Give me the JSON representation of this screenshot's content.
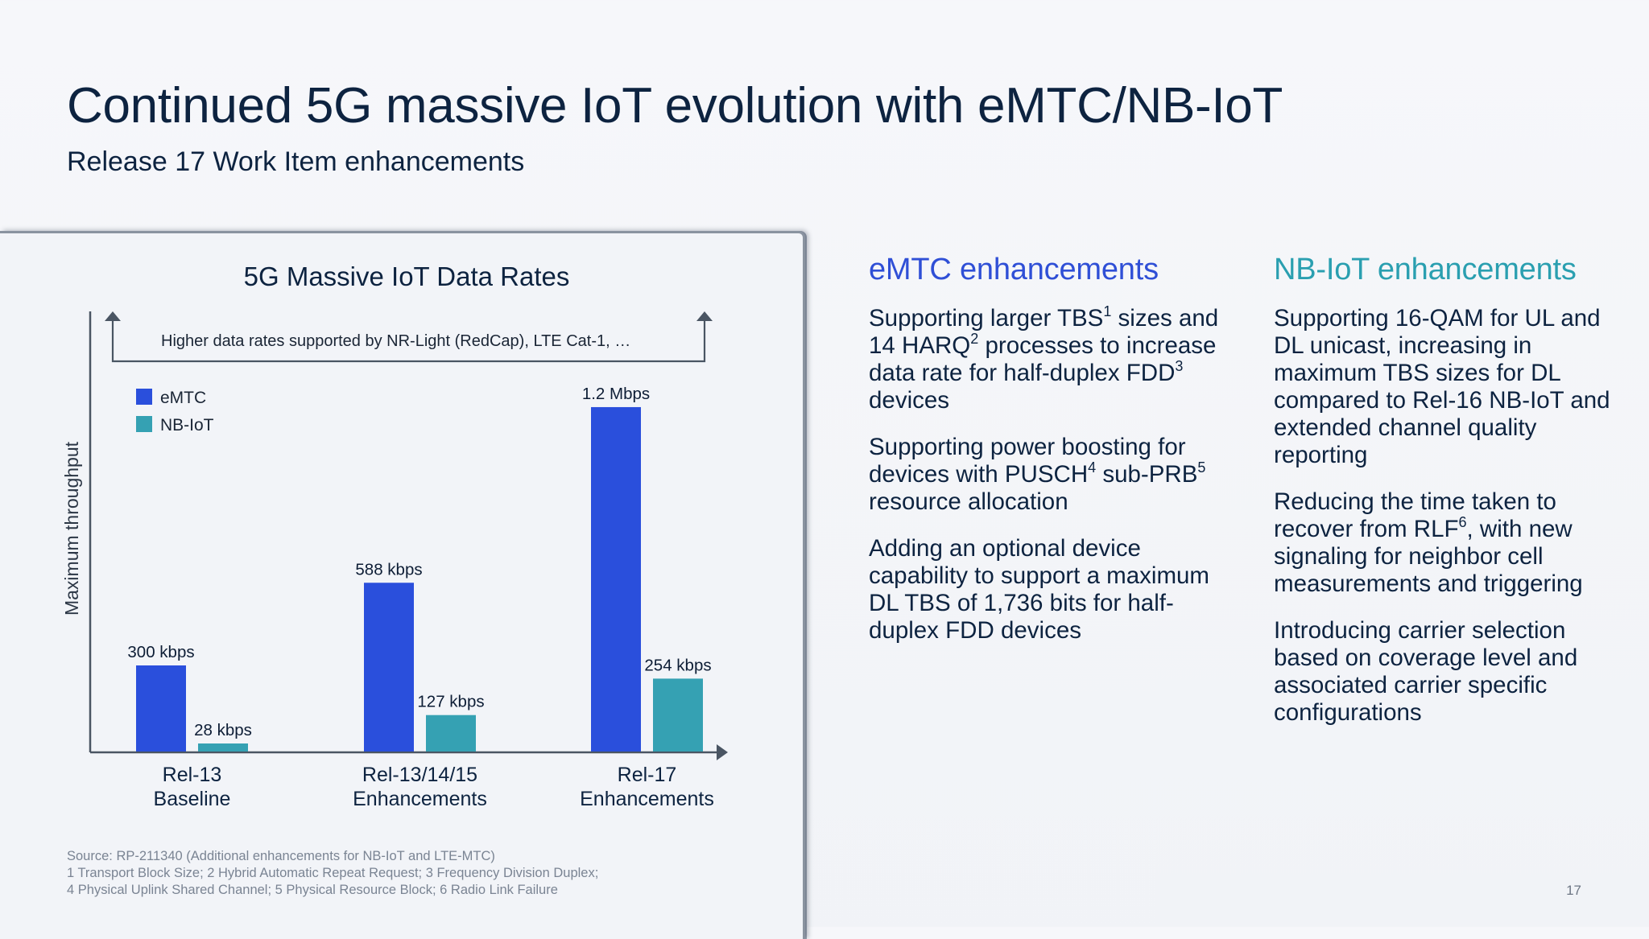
{
  "header": {
    "title": "Continued 5G massive IoT evolution with eMTC/NB-IoT",
    "subtitle": "Release 17 Work Item enhancements"
  },
  "chart_data": {
    "type": "bar",
    "title": "5G Massive IoT Data Rates",
    "ylabel": "Maximum throughput",
    "xlabel": "",
    "y_scale": "unlabeled (relative bar heights)",
    "grid": false,
    "legend_position": "top-left",
    "annotation": "Higher data rates supported by NR-Light (RedCap), LTE Cat-1, …",
    "categories": [
      {
        "line1": "Rel-13",
        "line2": "Baseline"
      },
      {
        "line1": "Rel-13/14/15",
        "line2": "Enhancements"
      },
      {
        "line1": "Rel-17",
        "line2": "Enhancements"
      }
    ],
    "series": [
      {
        "name": "eMTC",
        "color": "#2a4fdc",
        "values_kbps": [
          300,
          588,
          1200
        ],
        "labels": [
          "300 kbps",
          "588 kbps",
          "1.2 Mbps"
        ]
      },
      {
        "name": "NB-IoT",
        "color": "#35a1b3",
        "values_kbps": [
          28,
          127,
          254
        ],
        "labels": [
          "28 kbps",
          "127 kbps",
          "254 kbps"
        ]
      }
    ]
  },
  "footnotes": {
    "source": "Source: RP-211340 (Additional enhancements for NB-IoT and LTE-MTC)",
    "line1": "1 Transport Block Size; 2 Hybrid Automatic Repeat Request; 3 Frequency Division Duplex;",
    "line2": "4 Physical Uplink Shared Channel; 5 Physical Resource Block; 6 Radio Link Failure"
  },
  "emtc": {
    "heading": "eMTC enhancements",
    "color": "#2f4fd6",
    "items": [
      "Supporting larger TBS<sup>1</sup> sizes and 14 HARQ<sup>2</sup> processes to increase data rate for half-duplex FDD<sup>3</sup> devices",
      "Supporting power boosting for devices with PUSCH<sup>4</sup> sub-PRB<sup>5</sup> resource allocation",
      "Adding an optional device capability to support a maximum DL TBS of 1,736 bits for half-duplex FDD devices"
    ]
  },
  "nbiot": {
    "heading": "NB-IoT enhancements",
    "color": "#2a9fb0",
    "items": [
      "Supporting 16-QAM for UL and DL unicast, increasing in maximum TBS sizes for DL compared to Rel-16 NB-IoT and extended channel quality reporting",
      "Reducing the time taken to recover from RLF<sup>6</sup>, with new signaling for neighbor cell measurements and triggering",
      "Introducing carrier selection based on coverage level and associated carrier specific configurations"
    ]
  },
  "page_number": "17"
}
